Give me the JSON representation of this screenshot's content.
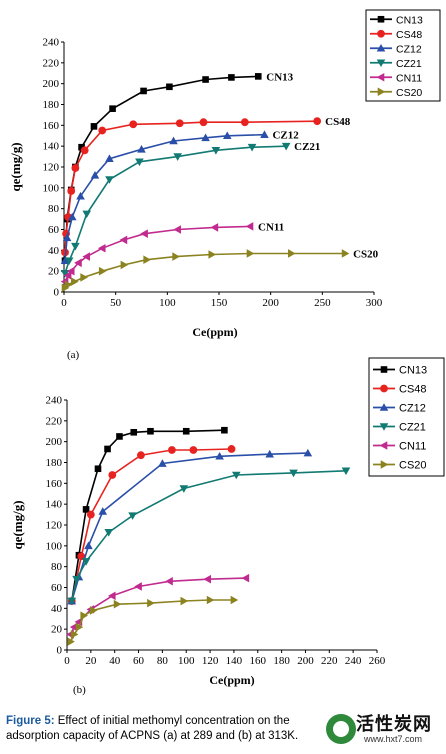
{
  "figure": {
    "panel_a_label": "(a)",
    "panel_b_label": "(b)",
    "caption_lead": "Figure 5:",
    "caption_text": " Effect of initial methomyl concentration on the adsorption capacity of ACPNS (a) at 289 and (b) at 313K."
  },
  "watermark": {
    "brand_cn": "活性炭网",
    "url": "www.hxt7.com"
  },
  "chart_data": [
    {
      "type": "line",
      "panel": "(a)",
      "xlabel": "Ce(ppm)",
      "ylabel": "qe(mg/g)",
      "xlim": [
        0,
        300
      ],
      "ylim": [
        0,
        240
      ],
      "xticks": [
        0,
        50,
        100,
        150,
        200,
        250,
        300
      ],
      "yticks": [
        0,
        20,
        40,
        60,
        80,
        100,
        120,
        140,
        160,
        180,
        200,
        220,
        240
      ],
      "legend_position": "top-right",
      "series": [
        {
          "name": "CN13",
          "marker": "square",
          "color": "#000000",
          "points": [
            [
              1,
              30
            ],
            [
              3,
              70
            ],
            [
              7,
              98
            ],
            [
              11,
              120
            ],
            [
              17,
              139
            ],
            [
              29,
              159
            ],
            [
              47,
              176
            ],
            [
              77,
              193
            ],
            [
              102,
              197
            ],
            [
              137,
              204
            ],
            [
              162,
              206
            ],
            [
              188,
              207
            ]
          ]
        },
        {
          "name": "CS48",
          "marker": "circle",
          "color": "#e8231f",
          "points": [
            [
              1,
              38
            ],
            [
              2,
              56
            ],
            [
              4,
              72
            ],
            [
              7,
              97
            ],
            [
              11,
              119
            ],
            [
              20,
              136
            ],
            [
              37,
              155
            ],
            [
              67,
              161
            ],
            [
              112,
              162
            ],
            [
              135,
              163
            ],
            [
              175,
              163
            ],
            [
              245,
              164
            ]
          ]
        },
        {
          "name": "CZ12",
          "marker": "triangle-up",
          "color": "#2a4fa8",
          "points": [
            [
              1,
              30
            ],
            [
              3,
              52
            ],
            [
              8,
              72
            ],
            [
              16,
              92
            ],
            [
              30,
              112
            ],
            [
              44,
              128
            ],
            [
              75,
              137
            ],
            [
              106,
              145
            ],
            [
              137,
              148
            ],
            [
              158,
              150
            ],
            [
              194,
              151
            ]
          ]
        },
        {
          "name": "CZ21",
          "marker": "triangle-down",
          "color": "#117a72",
          "points": [
            [
              1,
              18
            ],
            [
              5,
              30
            ],
            [
              11,
              44
            ],
            [
              22,
              75
            ],
            [
              44,
              108
            ],
            [
              73,
              125
            ],
            [
              110,
              130
            ],
            [
              147,
              136
            ],
            [
              182,
              139
            ],
            [
              215,
              140
            ]
          ]
        },
        {
          "name": "CN11",
          "marker": "triangle-left",
          "color": "#c12a8f",
          "points": [
            [
              1,
              10
            ],
            [
              4,
              16
            ],
            [
              7,
              20
            ],
            [
              14,
              28
            ],
            [
              22,
              34
            ],
            [
              37,
              42
            ],
            [
              58,
              50
            ],
            [
              78,
              56
            ],
            [
              110,
              60
            ],
            [
              146,
              62
            ],
            [
              180,
              63
            ]
          ]
        },
        {
          "name": "CS20",
          "marker": "triangle-right",
          "color": "#8b8320",
          "points": [
            [
              1,
              4
            ],
            [
              4,
              7
            ],
            [
              10,
              10
            ],
            [
              19,
              14
            ],
            [
              37,
              20
            ],
            [
              58,
              26
            ],
            [
              80,
              31
            ],
            [
              108,
              34
            ],
            [
              143,
              36
            ],
            [
              180,
              37
            ],
            [
              220,
              37
            ],
            [
              272,
              37
            ]
          ]
        }
      ],
      "annotations": [
        "CN13",
        "CS48",
        "CZ12",
        "CZ21",
        "CN11",
        "CS20"
      ]
    },
    {
      "type": "line",
      "panel": "(b)",
      "xlabel": "Ce(ppm)",
      "ylabel": "qe(mg/g)",
      "xlim": [
        0,
        260
      ],
      "ylim": [
        0,
        240
      ],
      "xticks": [
        0,
        20,
        40,
        60,
        80,
        100,
        120,
        140,
        160,
        180,
        200,
        220,
        240,
        260
      ],
      "yticks": [
        0,
        20,
        40,
        60,
        80,
        100,
        120,
        140,
        160,
        180,
        200,
        220,
        240
      ],
      "legend_position": "top-right",
      "series": [
        {
          "name": "CN13",
          "marker": "square",
          "color": "#000000",
          "points": [
            [
              4,
              47
            ],
            [
              10,
              91
            ],
            [
              16,
              135
            ],
            [
              26,
              174
            ],
            [
              34,
              193
            ],
            [
              44,
              205
            ],
            [
              56,
              209
            ],
            [
              70,
              210
            ],
            [
              100,
              210
            ],
            [
              132,
              211
            ]
          ]
        },
        {
          "name": "CS48",
          "marker": "circle",
          "color": "#e8231f",
          "points": [
            [
              4,
              47
            ],
            [
              12,
              90
            ],
            [
              20,
              130
            ],
            [
              38,
              168
            ],
            [
              62,
              187
            ],
            [
              88,
              192
            ],
            [
              106,
              192
            ],
            [
              138,
              193
            ]
          ]
        },
        {
          "name": "CZ12",
          "marker": "triangle-up",
          "color": "#2a4fa8",
          "points": [
            [
              4,
              47
            ],
            [
              10,
              70
            ],
            [
              18,
              100
            ],
            [
              30,
              133
            ],
            [
              80,
              179
            ],
            [
              128,
              186
            ],
            [
              170,
              188
            ],
            [
              202,
              189
            ]
          ]
        },
        {
          "name": "CZ21",
          "marker": "triangle-down",
          "color": "#117a72",
          "points": [
            [
              4,
              47
            ],
            [
              8,
              68
            ],
            [
              16,
              85
            ],
            [
              35,
              113
            ],
            [
              55,
              129
            ],
            [
              98,
              155
            ],
            [
              142,
              168
            ],
            [
              190,
              170
            ],
            [
              234,
              172
            ]
          ]
        },
        {
          "name": "CN11",
          "marker": "triangle-left",
          "color": "#c12a8f",
          "points": [
            [
              3,
              15
            ],
            [
              6,
              22
            ],
            [
              10,
              27
            ],
            [
              20,
              39
            ],
            [
              38,
              52
            ],
            [
              60,
              61
            ],
            [
              86,
              66
            ],
            [
              118,
              68
            ],
            [
              150,
              69
            ]
          ]
        },
        {
          "name": "CS20",
          "marker": "triangle-right",
          "color": "#8b8320",
          "points": [
            [
              3,
              8
            ],
            [
              6,
              15
            ],
            [
              10,
              22
            ],
            [
              14,
              33
            ],
            [
              22,
              38
            ],
            [
              42,
              44
            ],
            [
              70,
              45
            ],
            [
              98,
              47
            ],
            [
              120,
              48
            ],
            [
              140,
              48
            ]
          ]
        }
      ]
    }
  ]
}
